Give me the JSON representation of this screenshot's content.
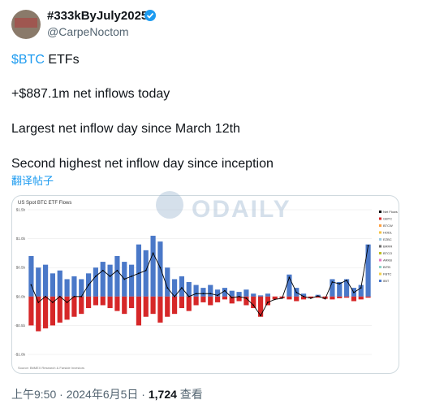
{
  "tweet": {
    "display_name": "#333kByJuly2025",
    "handle": "@CarpeNoctom",
    "cashtag": "$BTC",
    "line1_rest": " ETFs",
    "line2": "+$887.1m net inflows today",
    "line3": "Largest net inflow day since March 12th",
    "line4": "Second highest net inflow day since inception",
    "translate": "翻译帖子",
    "time": "上午9:50 · 2024年6月5日 · ",
    "views": "1,724",
    "views_label": " 查看",
    "watermark": "ODAILY"
  },
  "chart_data": {
    "type": "bar",
    "title": "US Spot BTC ETF Flows",
    "source": "Source: BitMEX Research & Farside Investors",
    "ylim": [
      -1.0,
      1.5
    ],
    "yticks": [
      {
        "value": 1.5,
        "label": "$1.5b"
      },
      {
        "value": 1.0,
        "label": "$1.0b"
      },
      {
        "value": 0.5,
        "label": "$0.5b"
      },
      {
        "value": 0.0,
        "label": "$0.0b"
      },
      {
        "value": -0.5,
        "label": "-$0.5b"
      },
      {
        "value": -1.0,
        "label": "-$1.0b"
      }
    ],
    "grid": true,
    "legend": [
      {
        "name": "Net Flows",
        "color": "#000000"
      },
      {
        "name": "GBTC",
        "color": "#d62728"
      },
      {
        "name": "BTCW",
        "color": "#ff9f40"
      },
      {
        "name": "HODL",
        "color": "#f5c242"
      },
      {
        "name": "EZBC",
        "color": "#9ecae1"
      },
      {
        "name": "BRRR",
        "color": "#6b6b6b"
      },
      {
        "name": "BTCO",
        "color": "#bcbd22"
      },
      {
        "name": "ARKB",
        "color": "#e377c2"
      },
      {
        "name": "BITB",
        "color": "#8dd3c7"
      },
      {
        "name": "FBTC",
        "color": "#f2d04b"
      },
      {
        "name": "IBIT",
        "color": "#4a78c8"
      }
    ],
    "series": [
      {
        "color": "#4a78c8",
        "values": [
          0.7,
          0.5,
          0.55,
          0.4,
          0.45,
          0.3,
          0.35,
          0.3,
          0.4,
          0.5,
          0.6,
          0.55,
          0.7,
          0.6,
          0.55,
          0.9,
          0.8,
          1.05,
          0.95,
          0.5,
          0.3,
          0.35,
          0.25,
          0.2,
          0.15,
          0.2,
          0.12,
          0.15,
          0.1,
          0.08,
          0.12,
          0.05,
          0.02,
          0.05,
          0.0,
          0.0,
          0.38,
          0.15,
          0.05,
          0.0,
          0.03,
          0.0,
          0.3,
          0.25,
          0.3,
          0.15,
          0.2,
          0.9
        ]
      },
      {
        "color": "#d62728",
        "values": [
          -0.5,
          -0.6,
          -0.55,
          -0.5,
          -0.45,
          -0.4,
          -0.35,
          -0.3,
          -0.2,
          -0.15,
          -0.15,
          -0.2,
          -0.25,
          -0.3,
          -0.2,
          -0.5,
          -0.35,
          -0.3,
          -0.45,
          -0.35,
          -0.3,
          -0.2,
          -0.25,
          -0.15,
          -0.1,
          -0.15,
          -0.1,
          -0.05,
          -0.12,
          -0.08,
          -0.15,
          -0.2,
          -0.35,
          -0.15,
          -0.05,
          -0.03,
          -0.05,
          -0.08,
          -0.05,
          -0.03,
          -0.02,
          -0.04,
          -0.05,
          -0.03,
          -0.02,
          -0.08,
          -0.05,
          -0.02
        ]
      },
      {
        "name": "Net Flows",
        "color": "#000000",
        "line": true,
        "values": [
          0.2,
          -0.1,
          0.0,
          -0.1,
          0.0,
          -0.1,
          0.0,
          0.0,
          0.2,
          0.35,
          0.45,
          0.35,
          0.45,
          0.3,
          0.35,
          0.4,
          0.45,
          0.75,
          0.5,
          0.15,
          0.0,
          0.15,
          0.0,
          0.05,
          0.05,
          0.05,
          0.02,
          0.1,
          -0.02,
          0.0,
          -0.03,
          -0.15,
          -0.33,
          -0.1,
          -0.05,
          -0.03,
          0.33,
          0.07,
          0.0,
          -0.03,
          0.01,
          -0.04,
          0.25,
          0.22,
          0.28,
          0.07,
          0.15,
          0.88
        ]
      }
    ]
  }
}
